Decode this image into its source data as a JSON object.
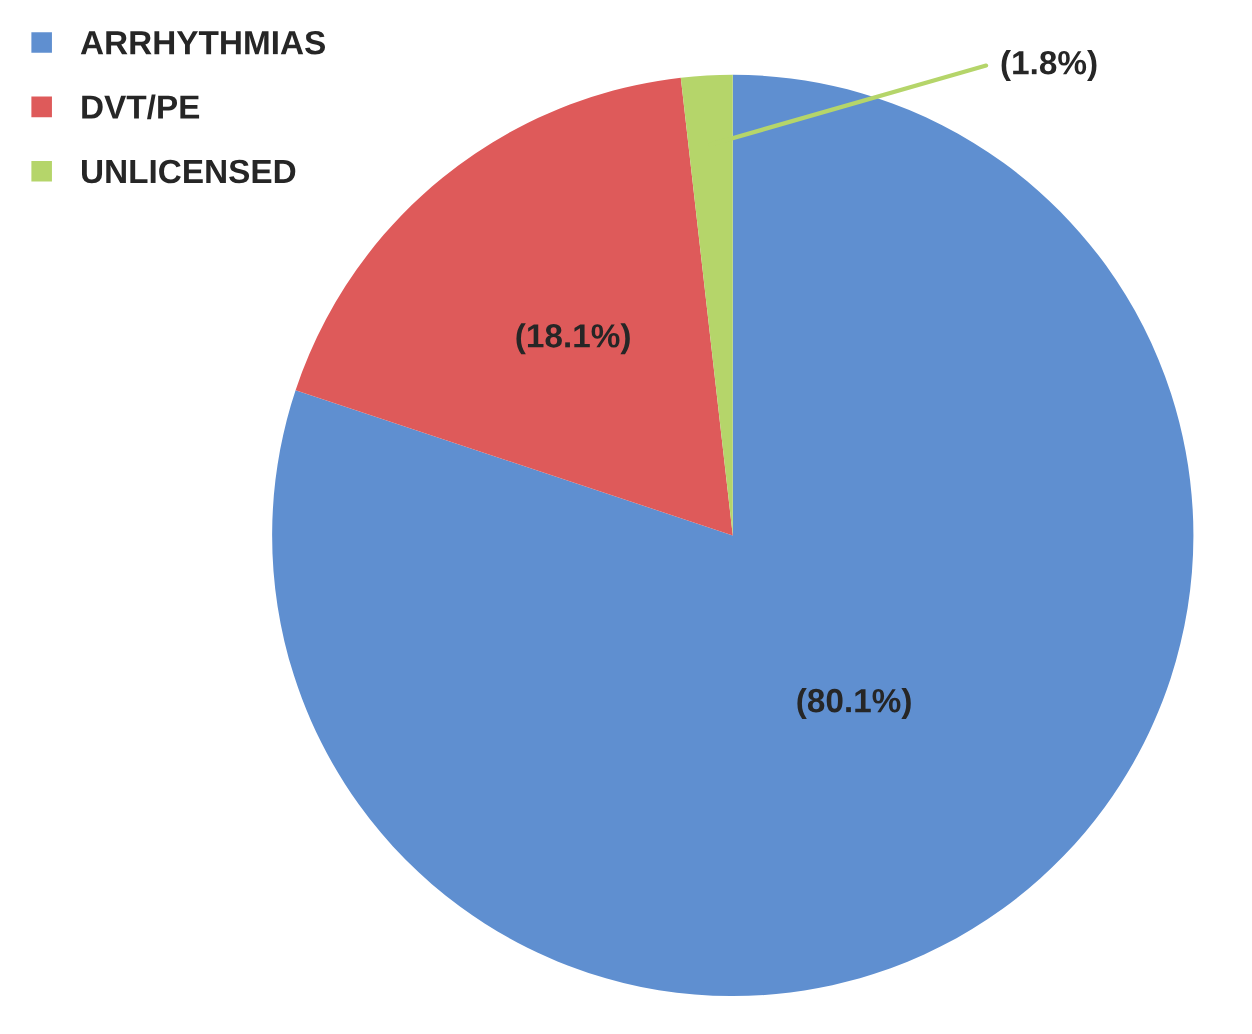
{
  "chart_data": {
    "type": "pie",
    "categories": [
      "ARRHYTHMIAS",
      "DVT/PE",
      "UNLICENSED"
    ],
    "values": [
      80.1,
      18.1,
      1.8
    ],
    "colors": [
      "#5f8fd0",
      "#de5a5a",
      "#b5d56a"
    ],
    "value_labels": [
      "(80.1%)",
      "(18.1%)",
      "(1.8%)"
    ],
    "legend": "top left"
  }
}
